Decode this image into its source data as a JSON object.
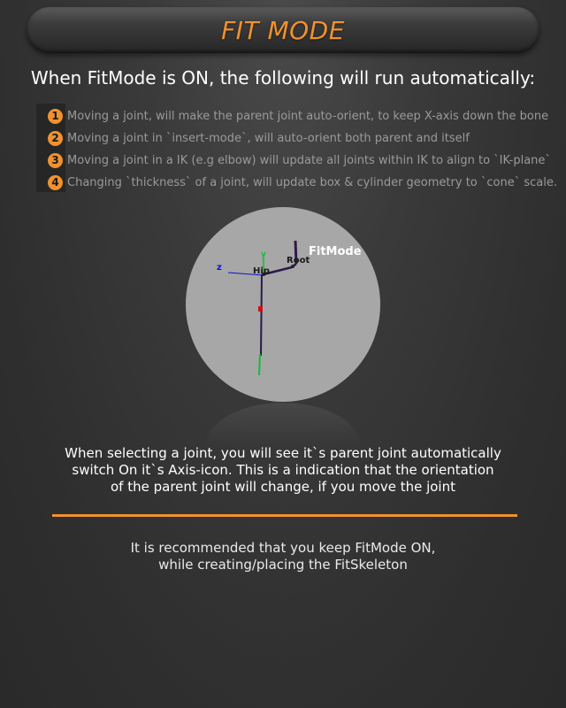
{
  "header": {
    "title": "FIT MODE"
  },
  "subtitle": "When FitMode is ON, the following will run automatically:",
  "steps": [
    {
      "number": "1",
      "text": "Moving a joint, will make the parent joint auto-orient, to keep X-axis down the bone"
    },
    {
      "number": "2",
      "text": "Moving a joint in `insert-mode`, will auto-orient both parent and itself"
    },
    {
      "number": "3",
      "text": "Moving a joint in a IK (e.g elbow) will update all joints within IK to align to `IK-plane`"
    },
    {
      "number": "4",
      "text": "Changing `thickness` of a joint, will update box & cylinder geometry to `cone` scale."
    }
  ],
  "viewport": {
    "mode_label": "FitMode",
    "joint_root": "Root",
    "joint_hip": "Hip",
    "axis_z": "z",
    "axis_y": "y"
  },
  "description": [
    "When selecting a joint, you will see it`s parent joint automatically",
    "switch On it`s Axis-icon. This is a indication that the orientation",
    "of the parent joint will change, if you move the joint"
  ],
  "recommendation": [
    "It is recommended that you keep FitMode ON,",
    "while creating/placing the FitSkeleton"
  ],
  "colors": {
    "accent": "#f0922e",
    "viewport_bg": "#a7a7a7",
    "bone": "#2a1a4a",
    "axis_x": "#d01010",
    "axis_y": "#10c030",
    "axis_z": "#1010d0"
  }
}
